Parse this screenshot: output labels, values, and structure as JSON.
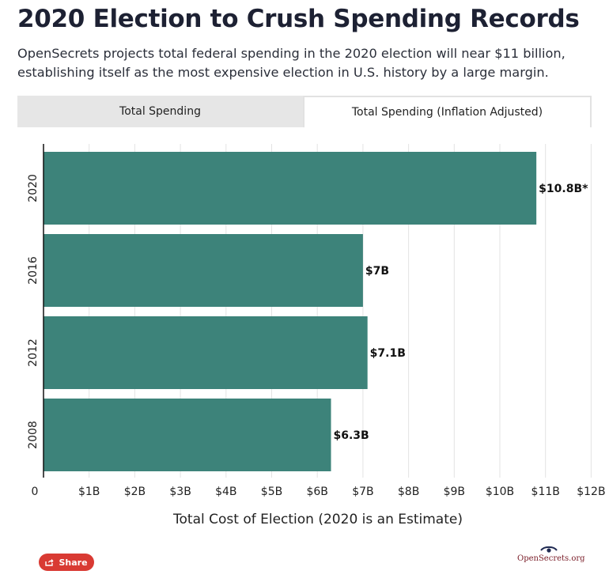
{
  "title": "2020 Election to Crush Spending Records",
  "subtitle": "OpenSecrets projects total federal spending in the 2020 election will near $11 billion, establishing itself as the most expensive election in U.S. history by a large margin.",
  "tabs": [
    {
      "label": "Total Spending",
      "active": false
    },
    {
      "label": "Total Spending (Inflation Adjusted)",
      "active": true
    }
  ],
  "share_label": "Share",
  "logo_text": "OpenSecrets.org",
  "colors": {
    "bar": "#3d837a",
    "grid": "#e3e3e3",
    "axis": "#111111"
  },
  "chart_data": {
    "type": "bar",
    "orientation": "horizontal",
    "categories": [
      "2020",
      "2016",
      "2012",
      "2008"
    ],
    "values": [
      10.8,
      7.0,
      7.1,
      6.3
    ],
    "data_labels": [
      "$10.8B*",
      "$7B",
      "$7.1B",
      "$6.3B"
    ],
    "xlabel": "Total Cost of Election (2020 is an Estimate)",
    "ylabel": "",
    "xlim": [
      0,
      12
    ],
    "x_ticks": [
      "0",
      "$1B",
      "$2B",
      "$3B",
      "$4B",
      "$5B",
      "$6B",
      "$7B",
      "$8B",
      "$9B",
      "$10B",
      "$11B",
      "$12B"
    ],
    "grid": true,
    "legend": "none"
  }
}
